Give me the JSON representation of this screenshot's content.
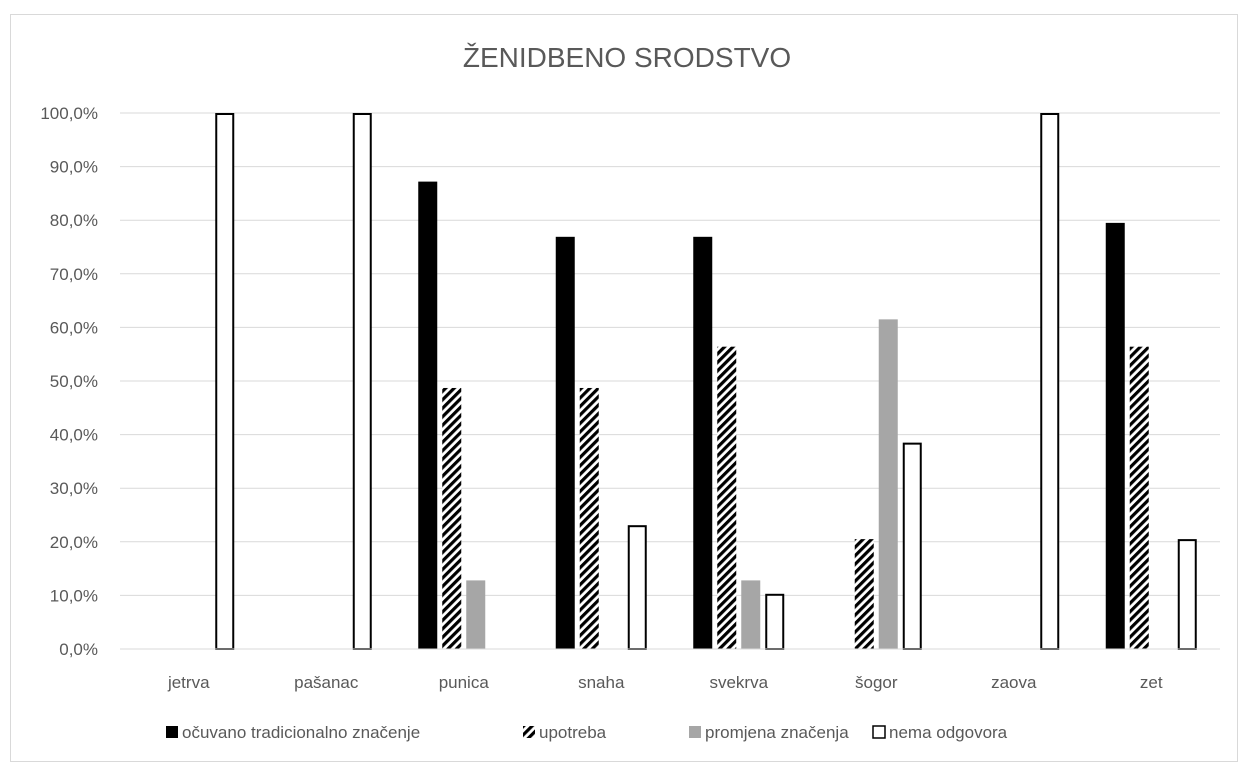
{
  "chart_data": {
    "type": "bar",
    "title": "ŽENIDBENO SRODSTVO",
    "categories": [
      "jetrva",
      "pašanac",
      "punica",
      "snaha",
      "svekrva",
      "šogor",
      "zaova",
      "zet"
    ],
    "ylim": [
      0,
      100
    ],
    "yticks": [
      "0,0%",
      "10,0%",
      "20,0%",
      "30,0%",
      "40,0%",
      "50,0%",
      "60,0%",
      "70,0%",
      "80,0%",
      "90,0%",
      "100,0%"
    ],
    "grid": true,
    "legend_position": "bottom",
    "series": [
      {
        "name": "očuvano tradicionalno značenje",
        "values": [
          0,
          0,
          87.2,
          76.9,
          76.9,
          0,
          0,
          79.5
        ],
        "color": "#000000",
        "pattern": "solid"
      },
      {
        "name": "upotreba",
        "values": [
          0,
          0,
          48.7,
          48.7,
          56.4,
          20.5,
          0,
          56.4
        ],
        "color": "#000000",
        "pattern": "diagonal-hatch"
      },
      {
        "name": "promjena značenja",
        "values": [
          0,
          0,
          12.8,
          0,
          12.8,
          61.5,
          0,
          0
        ],
        "color": "#a6a6a6",
        "pattern": "solid"
      },
      {
        "name": "nema odgovora",
        "values": [
          100,
          100,
          0,
          23.1,
          10.3,
          38.5,
          100,
          20.5
        ],
        "color": "#ffffff",
        "pattern": "outline"
      }
    ]
  }
}
